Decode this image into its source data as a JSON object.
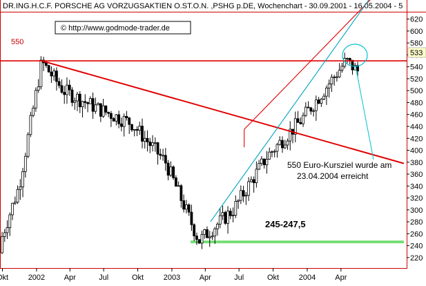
{
  "header": {
    "title": "DR.ING.H.C.F. PORSCHE AG VORZUGSAKTIEN O.ST.O.N. ,PSHG p.DE, Wochenchart - 30.09.2001 - 16.05.2004 - 5",
    "watermark": "© http://www.godmode-trader.de"
  },
  "chart_data": {
    "type": "candlestick",
    "title": "DR.ING.H.C.F. PORSCHE AG VORZUGSAKTIEN O.ST.O.N. ,PSHG p.DE, Wochenchart - 30.09.2001 - 16.05.2004 - 5",
    "period": "weekly",
    "date_range": [
      "2001-09-30",
      "2004-05-16"
    ],
    "x_ticks": [
      "Okt",
      "2002",
      "Apr",
      "Jul",
      "Okt",
      "2003",
      "Apr",
      "Jul",
      "Okt",
      "2004",
      "Apr"
    ],
    "y_ticks": [
      220,
      240,
      260,
      280,
      300,
      320,
      340,
      360,
      380,
      400,
      420,
      440,
      460,
      480,
      500,
      520,
      540,
      560,
      580,
      600,
      620
    ],
    "ylim": [
      210,
      630
    ],
    "last_price": "533",
    "grid": false,
    "key_points": [
      {
        "date": "2001-09",
        "price": 228
      },
      {
        "date": "2001-11",
        "price": 340
      },
      {
        "date": "2002-01",
        "price": 548
      },
      {
        "date": "2002-03",
        "price": 500
      },
      {
        "date": "2002-06",
        "price": 470
      },
      {
        "date": "2002-09",
        "price": 445
      },
      {
        "date": "2002-12",
        "price": 380
      },
      {
        "date": "2003-03",
        "price": 248
      },
      {
        "date": "2003-06",
        "price": 300
      },
      {
        "date": "2003-09",
        "price": 390
      },
      {
        "date": "2003-12",
        "price": 450
      },
      {
        "date": "2004-04",
        "price": 550
      },
      {
        "date": "2004-05",
        "price": 533
      }
    ],
    "lines": {
      "resistance_level": {
        "value": 550,
        "label": "550",
        "color": "#e00000"
      },
      "support_zone": {
        "values": [
          245,
          247.5
        ],
        "label": "245-247,5",
        "color": "#00cc00"
      },
      "downtrend": {
        "from": {
          "date": "2002-01",
          "price": 550
        },
        "to": {
          "date": "2004-05",
          "price": 400
        },
        "color": "#e00000"
      },
      "channel_upper": {
        "from": {
          "date": "2003-07",
          "price": 435
        },
        "to": {
          "date": "2004-05",
          "price": 630
        },
        "color": "#e00000"
      },
      "channel_lower": {
        "from": {
          "date": "2003-04",
          "price": 280
        },
        "to": {
          "date": "2004-05",
          "price": 625
        },
        "color": "#00a0c0"
      }
    },
    "annotations": [
      {
        "text_lines": [
          "550 Euro-Kursziel wurde am",
          "23.04.2004 erreicht"
        ],
        "color": "#00c0d0"
      },
      {
        "text": "245-247,5"
      }
    ]
  },
  "colors": {
    "frame": "#cc0000",
    "candle": "#000000",
    "resistance": "#e00000",
    "support": "#33cc33",
    "channel_lower": "#00a0c0",
    "callout": "#00c0d0"
  }
}
